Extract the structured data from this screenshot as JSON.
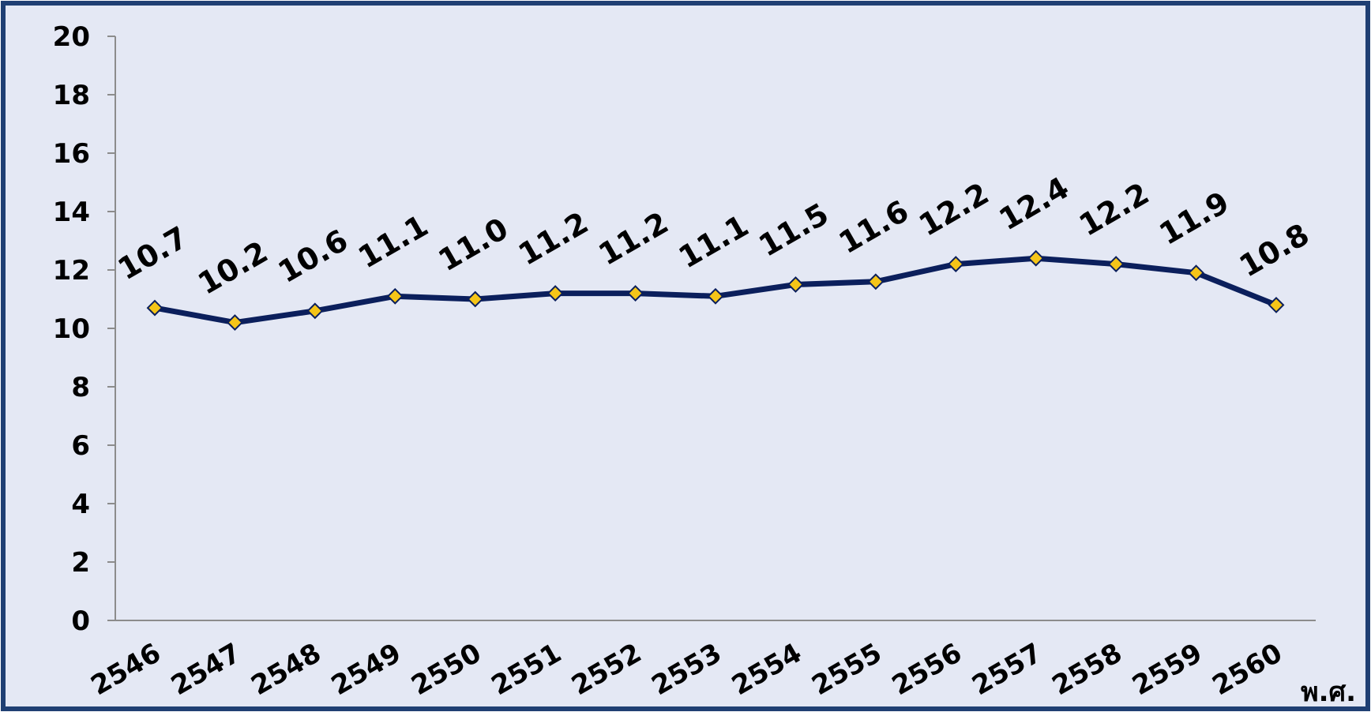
{
  "chart_data": {
    "type": "line",
    "title": "",
    "xlabel": "พ.ศ.",
    "ylabel": "",
    "categories": [
      "2546",
      "2547",
      "2548",
      "2549",
      "2550",
      "2551",
      "2552",
      "2553",
      "2554",
      "2555",
      "2556",
      "2557",
      "2558",
      "2559",
      "2560"
    ],
    "series": [
      {
        "values": [
          10.7,
          10.2,
          10.6,
          11.1,
          11.0,
          11.2,
          11.2,
          11.1,
          11.5,
          11.6,
          12.2,
          12.4,
          12.2,
          11.9,
          10.8
        ],
        "labels": [
          "10.7",
          "10.2",
          "10.6",
          "11.1",
          "11.0",
          "11.2",
          "11.2",
          "11.1",
          "11.5",
          "11.6",
          "12.2",
          "12.4",
          "12.2",
          "11.9",
          "10.8"
        ]
      }
    ],
    "ylim": [
      0,
      20
    ],
    "yticks": [
      "0",
      "2",
      "4",
      "6",
      "8",
      "10",
      "12",
      "14",
      "16",
      "18",
      "20"
    ],
    "grid": false,
    "legend": "none",
    "colors": {
      "background": "#E4E8F4",
      "frame": "#1F3F73",
      "line": "#0B1F5C",
      "marker_fill": "#F5C518",
      "marker_stroke": "#0B1F5C",
      "axis": "#8C8C8C"
    }
  }
}
